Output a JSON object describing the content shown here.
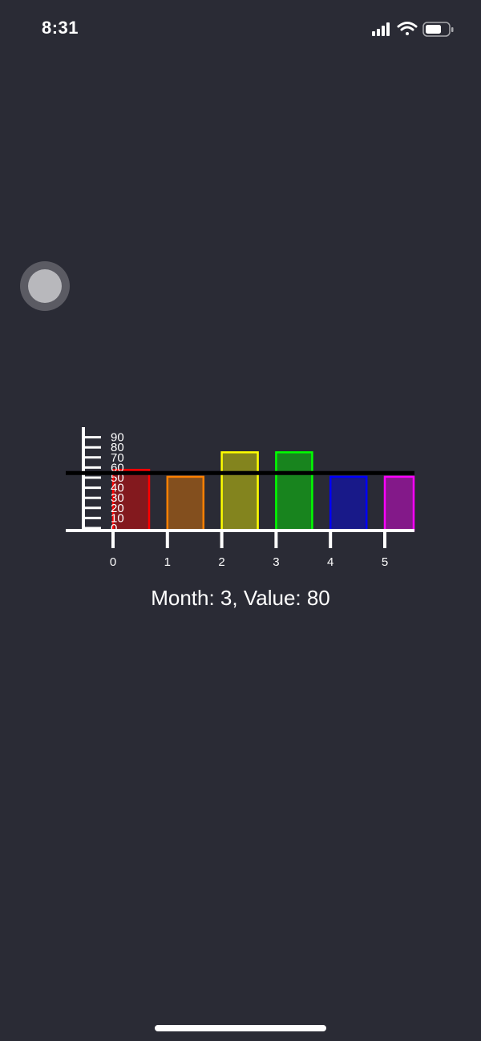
{
  "status_bar": {
    "time": "8:31",
    "icons": [
      "cellular-signal-icon",
      "wifi-icon",
      "battery-icon"
    ]
  },
  "touch_button": {
    "icon": "assistive-touch-icon"
  },
  "chart_data": {
    "type": "bar",
    "categories": [
      "0",
      "1",
      "2",
      "3",
      "4",
      "5"
    ],
    "values": [
      62,
      55,
      80,
      80,
      55,
      55
    ],
    "bar_colors": [
      "#ff0000",
      "#ff8000",
      "#ffff00",
      "#00ff00",
      "#0000ff",
      "#ff00ff"
    ],
    "y_ticks": [
      "0",
      "10",
      "20",
      "30",
      "40",
      "50",
      "60",
      "70",
      "80",
      "90"
    ],
    "ylim": [
      0,
      100
    ],
    "threshold": 58,
    "grid": false
  },
  "caption": {
    "text": "Month: 3, Value: 80"
  }
}
